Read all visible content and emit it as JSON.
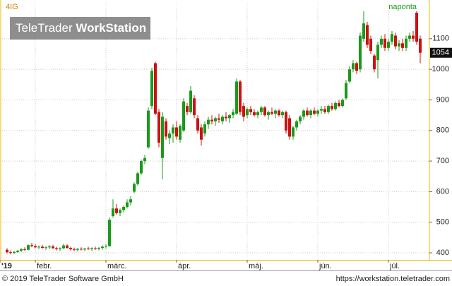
{
  "chart_data": {
    "type": "candlestick",
    "title": "4IG",
    "interval_label": "naponta",
    "xlim": [
      -2,
      119
    ],
    "xticks": [
      {
        "value": -2,
        "label": "'19"
      },
      {
        "value": 8,
        "label": "febr."
      },
      {
        "value": 28,
        "label": "márc."
      },
      {
        "value": 48,
        "label": "ápr."
      },
      {
        "value": 68,
        "label": "máj."
      },
      {
        "value": 88,
        "label": "jún."
      },
      {
        "value": 108,
        "label": "júl."
      }
    ],
    "ylim": [
      377,
      1215
    ],
    "yticks": [
      400,
      500,
      600,
      700,
      800,
      900,
      1000,
      1100
    ],
    "grid": true,
    "up_color": "#1a9a1a",
    "down_color": "#cc1111",
    "last_price": 1054,
    "ohlc": [
      [
        410,
        415,
        398,
        402
      ],
      [
        402,
        408,
        395,
        400
      ],
      [
        400,
        406,
        396,
        403
      ],
      [
        403,
        410,
        400,
        407
      ],
      [
        407,
        415,
        403,
        412
      ],
      [
        412,
        418,
        406,
        410
      ],
      [
        410,
        428,
        408,
        425
      ],
      [
        425,
        432,
        418,
        422
      ],
      [
        422,
        428,
        415,
        418
      ],
      [
        418,
        424,
        412,
        420
      ],
      [
        420,
        426,
        414,
        416
      ],
      [
        416,
        422,
        410,
        418
      ],
      [
        418,
        425,
        412,
        421
      ],
      [
        421,
        426,
        413,
        415
      ],
      [
        415,
        420,
        408,
        412
      ],
      [
        412,
        418,
        406,
        415
      ],
      [
        415,
        430,
        412,
        424
      ],
      [
        424,
        428,
        414,
        416
      ],
      [
        416,
        420,
        408,
        412
      ],
      [
        412,
        417,
        405,
        410
      ],
      [
        410,
        416,
        404,
        413
      ],
      [
        413,
        418,
        408,
        411
      ],
      [
        411,
        416,
        406,
        414
      ],
      [
        414,
        420,
        409,
        412
      ],
      [
        412,
        418,
        406,
        415
      ],
      [
        415,
        420,
        410,
        413
      ],
      [
        413,
        419,
        408,
        416
      ],
      [
        416,
        424,
        410,
        420
      ],
      [
        420,
        428,
        414,
        422
      ],
      [
        422,
        515,
        420,
        508
      ],
      [
        520,
        575,
        515,
        545
      ],
      [
        545,
        560,
        525,
        530
      ],
      [
        530,
        545,
        520,
        540
      ],
      [
        540,
        555,
        532,
        550
      ],
      [
        550,
        575,
        545,
        565
      ],
      [
        565,
        585,
        555,
        575
      ],
      [
        600,
        630,
        595,
        625
      ],
      [
        625,
        665,
        620,
        660
      ],
      [
        660,
        705,
        655,
        700
      ],
      [
        700,
        720,
        690,
        710
      ],
      [
        745,
        875,
        740,
        865
      ],
      [
        880,
        1005,
        870,
        995
      ],
      [
        1020,
        1025,
        850,
        855
      ],
      [
        860,
        870,
        745,
        760
      ],
      [
        710,
        860,
        640,
        845
      ],
      [
        830,
        840,
        770,
        780
      ],
      [
        775,
        800,
        755,
        790
      ],
      [
        790,
        820,
        760,
        810
      ],
      [
        810,
        830,
        770,
        780
      ],
      [
        770,
        820,
        760,
        815
      ],
      [
        800,
        905,
        795,
        895
      ],
      [
        880,
        890,
        850,
        860
      ],
      [
        860,
        945,
        855,
        930
      ],
      [
        905,
        915,
        840,
        850
      ],
      [
        840,
        850,
        790,
        800
      ],
      [
        810,
        820,
        750,
        770
      ],
      [
        790,
        830,
        780,
        820
      ],
      [
        820,
        845,
        805,
        835
      ],
      [
        835,
        850,
        820,
        830
      ],
      [
        830,
        845,
        815,
        840
      ],
      [
        840,
        855,
        825,
        835
      ],
      [
        830,
        850,
        820,
        845
      ],
      [
        845,
        860,
        830,
        840
      ],
      [
        840,
        855,
        825,
        850
      ],
      [
        850,
        870,
        840,
        860
      ],
      [
        855,
        970,
        850,
        960
      ],
      [
        960,
        965,
        850,
        860
      ],
      [
        880,
        890,
        830,
        845
      ],
      [
        850,
        875,
        840,
        870
      ],
      [
        870,
        880,
        850,
        860
      ],
      [
        860,
        870,
        845,
        850
      ],
      [
        850,
        865,
        840,
        860
      ],
      [
        860,
        880,
        850,
        875
      ],
      [
        875,
        880,
        845,
        850
      ],
      [
        850,
        865,
        835,
        860
      ],
      [
        860,
        875,
        850,
        855
      ],
      [
        855,
        870,
        840,
        865
      ],
      [
        865,
        870,
        845,
        850
      ],
      [
        850,
        865,
        840,
        860
      ],
      [
        860,
        865,
        790,
        800
      ],
      [
        840,
        850,
        770,
        780
      ],
      [
        780,
        815,
        770,
        810
      ],
      [
        810,
        835,
        800,
        830
      ],
      [
        830,
        850,
        820,
        845
      ],
      [
        845,
        870,
        835,
        865
      ],
      [
        865,
        875,
        845,
        850
      ],
      [
        850,
        870,
        840,
        865
      ],
      [
        865,
        875,
        850,
        855
      ],
      [
        855,
        870,
        845,
        865
      ],
      [
        865,
        880,
        855,
        870
      ],
      [
        870,
        880,
        855,
        860
      ],
      [
        860,
        885,
        855,
        880
      ],
      [
        880,
        890,
        865,
        870
      ],
      [
        870,
        895,
        865,
        890
      ],
      [
        890,
        900,
        875,
        880
      ],
      [
        880,
        905,
        875,
        900
      ],
      [
        905,
        965,
        900,
        955
      ],
      [
        960,
        1010,
        955,
        1000
      ],
      [
        1000,
        1030,
        990,
        1020
      ],
      [
        1020,
        1025,
        985,
        995
      ],
      [
        1000,
        1120,
        990,
        1110
      ],
      [
        1100,
        1190,
        1090,
        1150
      ],
      [
        1145,
        1155,
        1070,
        1080
      ],
      [
        1100,
        1110,
        1050,
        1060
      ],
      [
        1045,
        1050,
        990,
        1000
      ],
      [
        1030,
        1090,
        970,
        1080
      ],
      [
        1080,
        1110,
        1070,
        1100
      ],
      [
        1100,
        1115,
        1060,
        1070
      ],
      [
        1070,
        1100,
        1060,
        1090
      ],
      [
        1090,
        1125,
        1080,
        1115
      ],
      [
        1110,
        1120,
        1065,
        1075
      ],
      [
        1075,
        1095,
        1060,
        1085
      ],
      [
        1085,
        1100,
        1060,
        1070
      ],
      [
        1070,
        1110,
        1060,
        1100
      ],
      [
        1100,
        1120,
        1090,
        1110
      ],
      [
        1110,
        1125,
        1090,
        1100
      ],
      [
        1185,
        1190,
        1080,
        1090
      ],
      [
        1100,
        1110,
        1020,
        1054
      ]
    ]
  },
  "watermark": {
    "brand": "TeleTrader ",
    "product": "WorkStation"
  },
  "footer": {
    "copyright": "© 2019 TeleTrader Software GmbH",
    "url": "https://workstation.teletrader.com"
  }
}
